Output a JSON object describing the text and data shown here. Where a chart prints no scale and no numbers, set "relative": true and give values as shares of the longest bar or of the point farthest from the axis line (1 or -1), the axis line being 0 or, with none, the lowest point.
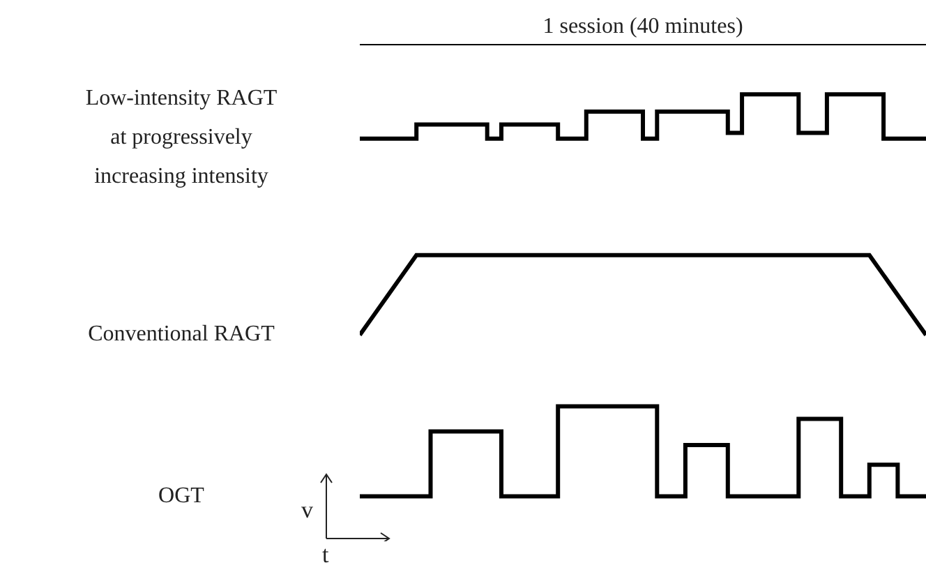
{
  "chart_data": [
    {
      "type": "step",
      "title": "1 session (40 minutes)",
      "relative": true,
      "marker": "none",
      "categories": [
        null,
        null,
        null,
        null,
        null,
        null,
        null,
        null,
        null,
        null,
        null,
        null,
        null,
        null,
        null,
        null,
        null,
        null,
        null,
        null,
        null,
        null,
        null,
        null,
        null,
        null,
        null,
        null,
        null,
        null,
        null,
        null,
        null,
        null,
        null,
        null,
        null,
        null,
        null,
        null,
        null
      ],
      "series": [
        {
          "name": "Low-intensity RAGT at progressively increasing intensity",
          "color": "#000000",
          "values": [
            0,
            0,
            0,
            0,
            0.32,
            0.32,
            0.32,
            0.32,
            0.32,
            0,
            0.32,
            0.32,
            0.32,
            0.32,
            0,
            0,
            0.61,
            0.61,
            0.61,
            0.61,
            0,
            0.61,
            0.61,
            0.61,
            0.61,
            0.61,
            0.13,
            1,
            1,
            1,
            1,
            0.13,
            0.13,
            1,
            1,
            1,
            1,
            0,
            0,
            0,
            0
          ]
        }
      ]
    },
    {
      "type": "line",
      "relative": true,
      "marker": "none",
      "categories": [
        null,
        null,
        null,
        null,
        null,
        null,
        null,
        null,
        null,
        null,
        null,
        null,
        null,
        null,
        null,
        null,
        null,
        null,
        null,
        null,
        null,
        null,
        null,
        null,
        null,
        null,
        null,
        null,
        null,
        null,
        null,
        null,
        null,
        null,
        null,
        null,
        null,
        null,
        null,
        null,
        null
      ],
      "series": [
        {
          "name": "Conventional RAGT",
          "color": "#000000",
          "values": [
            0,
            0.25,
            0.5,
            0.75,
            1,
            1,
            1,
            1,
            1,
            1,
            1,
            1,
            1,
            1,
            1,
            1,
            1,
            1,
            1,
            1,
            1,
            1,
            1,
            1,
            1,
            1,
            1,
            1,
            1,
            1,
            1,
            1,
            1,
            1,
            1,
            1,
            1,
            0.75,
            0.5,
            0.25,
            0
          ]
        }
      ]
    },
    {
      "type": "step",
      "relative": true,
      "marker": "none",
      "xlabel": "t",
      "ylabel": "v",
      "categories": [
        null,
        null,
        null,
        null,
        null,
        null,
        null,
        null,
        null,
        null,
        null,
        null,
        null,
        null,
        null,
        null,
        null,
        null,
        null,
        null,
        null,
        null,
        null,
        null,
        null,
        null,
        null,
        null,
        null,
        null,
        null,
        null,
        null,
        null,
        null,
        null,
        null,
        null,
        null,
        null,
        null
      ],
      "series": [
        {
          "name": "OGT",
          "color": "#000000",
          "values": [
            0,
            0,
            0,
            0,
            0,
            0.72,
            0.72,
            0.72,
            0.72,
            0.72,
            0,
            0,
            0,
            0,
            1,
            1,
            1,
            1,
            1,
            1,
            1,
            0,
            0,
            0.57,
            0.57,
            0.57,
            0,
            0,
            0,
            0,
            0,
            0.86,
            0.86,
            0.86,
            0,
            0,
            0.35,
            0.35,
            0,
            0,
            0
          ]
        }
      ]
    }
  ]
}
